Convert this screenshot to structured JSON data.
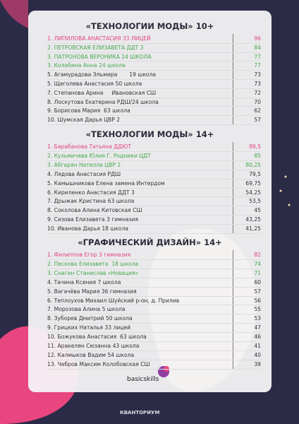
{
  "sections": [
    {
      "title": "«ТЕХНОЛОГИИ МОДЫ» 10+",
      "rows": [
        {
          "name": "1. ЛИПИЛОВА АНАСТАСИЯ 33 ЛИЦЕЙ",
          "score": "96",
          "color": "#e2457e"
        },
        {
          "name": "2. ПЕТРОВСКАЯ ЕЛИЗАВЕТА ДДТ 3",
          "score": "84",
          "color": "#43a94a"
        },
        {
          "name": "3. ПАТРОНОВА ВЕРОНИКА 14 ШКОЛА",
          "score": "77",
          "color": "#43a94a"
        },
        {
          "name": "3. Колабина Анна 24 школа",
          "score": "77",
          "color": "#43a94a"
        },
        {
          "name": "5. Агамурадова Эльмира       19 школа",
          "score": "73",
          "color": "#333333"
        },
        {
          "name": "5. Щеголева Анастасия 50 школа",
          "score": "73",
          "color": "#333333"
        },
        {
          "name": "7. Степанова Арина     Ивановская СШ",
          "score": "72",
          "color": "#333333"
        },
        {
          "name": "8. Лоскутова Екатерина РДШ/24 школа",
          "score": "70",
          "color": "#333333"
        },
        {
          "name": "9. Борисова Мария  63 школа",
          "score": "62",
          "color": "#333333"
        },
        {
          "name": "10. Шумская Дарья ЦВР 2",
          "score": "57",
          "color": "#333333"
        }
      ]
    },
    {
      "title": "«ТЕХНОЛОГИИ МОДЫ» 14+",
      "rows": [
        {
          "name": "1. Барабанова Татьяна ДДЮТ",
          "score": "99,5",
          "color": "#e2457e"
        },
        {
          "name": "2. Кузьмичева Юлия Г. Родники ЦДТ",
          "score": "85",
          "color": "#43a94a"
        },
        {
          "name": "3. Абгарян Нателла ЦВР 2",
          "score": "80,25",
          "color": "#43a94a"
        },
        {
          "name": "4. Лядова Анастасия РДШ",
          "score": "79,5",
          "color": "#333333"
        },
        {
          "name": "5. Камышникова Елена замена Интердом",
          "score": "69,75",
          "color": "#333333"
        },
        {
          "name": "6. Кириленко Анастасия ДДТ 3",
          "score": "54,25",
          "color": "#333333"
        },
        {
          "name": "7. Дрыжак Кристина 63 школа",
          "score": "53,5",
          "color": "#333333"
        },
        {
          "name": "8. Соколова Алина Китовская СШ",
          "score": "45",
          "color": "#333333"
        },
        {
          "name": "9. Сизова Елизавета 3 гимназия",
          "score": "43,25",
          "color": "#333333"
        },
        {
          "name": "10. Иванова Дарья 18 школа",
          "score": "41,25",
          "color": "#333333"
        }
      ]
    },
    {
      "title": "«ГРАФИЧЕСКИЙ ДИЗАЙН» 14+",
      "rows": [
        {
          "name": "1. Филиппов Егор 3 гимназия",
          "score": "82",
          "color": "#e2457e"
        },
        {
          "name": "2. Пескова Елизавета  18 школа",
          "score": "74",
          "color": "#43a94a"
        },
        {
          "name": "3. Снагин Станислав «Новация»",
          "score": "71",
          "color": "#43a94a"
        },
        {
          "name": "4. Тачина Ксения 7 школа",
          "score": "60",
          "color": "#333333"
        },
        {
          "name": "5. Вагачёва Мария 36 гимназия",
          "score": "57",
          "color": "#333333"
        },
        {
          "name": "6. Теплоухов Михаил Шуйский р-он, д. Прилив",
          "score": "56",
          "color": "#333333"
        },
        {
          "name": "7. Морозова Алина 5 школа",
          "score": "55",
          "color": "#333333"
        },
        {
          "name": "8. Зуборев Дмитрий 50 школа",
          "score": "53",
          "color": "#333333"
        },
        {
          "name": "9. Грицких Наталья 33 лицей",
          "score": "47",
          "color": "#333333"
        },
        {
          "name": "10. Божукова Анастасия  63 школа",
          "score": "46",
          "color": "#333333"
        },
        {
          "name": "11. Аракелян Сюзанна 43 школа",
          "score": "41",
          "color": "#333333"
        },
        {
          "name": "12. Калмыков Вадим 54 школа",
          "score": "40",
          "color": "#333333"
        },
        {
          "name": "13. Чебров Максим Колобовская СШ",
          "score": "39",
          "color": "#333333"
        }
      ]
    }
  ],
  "logo": "basicskills",
  "footer": "КВАНТОРИУМ"
}
